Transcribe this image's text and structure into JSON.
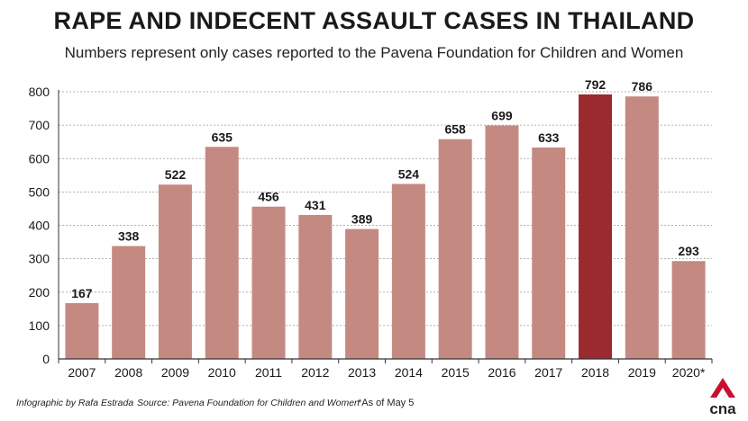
{
  "chart_data": {
    "type": "bar",
    "title": "RAPE AND INDECENT ASSAULT CASES IN THAILAND",
    "subtitle": "Numbers represent only cases reported to the Pavena Foundation for Children and Women",
    "categories": [
      "2007",
      "2008",
      "2009",
      "2010",
      "2011",
      "2012",
      "2013",
      "2014",
      "2015",
      "2016",
      "2017",
      "2018",
      "2019",
      "2020*"
    ],
    "values": [
      167,
      338,
      522,
      635,
      456,
      431,
      389,
      524,
      658,
      699,
      633,
      792,
      786,
      293
    ],
    "highlight_category": "2018",
    "ylim": [
      0,
      800
    ],
    "yticks": [
      0,
      100,
      200,
      300,
      400,
      500,
      600,
      700,
      800
    ],
    "grid": true,
    "xlabel": "",
    "ylabel": "",
    "colors": {
      "bar": "#c48a82",
      "highlight": "#9a2a30",
      "grid": "#999999"
    }
  },
  "footer": {
    "credit": "Infographic by Rafa Estrada",
    "source": "Source: Pavena Foundation for Children and Women",
    "note": "*As of May 5"
  },
  "logo": {
    "text": "cna",
    "icon": "cna-logo-icon",
    "color": "#c8102e"
  }
}
